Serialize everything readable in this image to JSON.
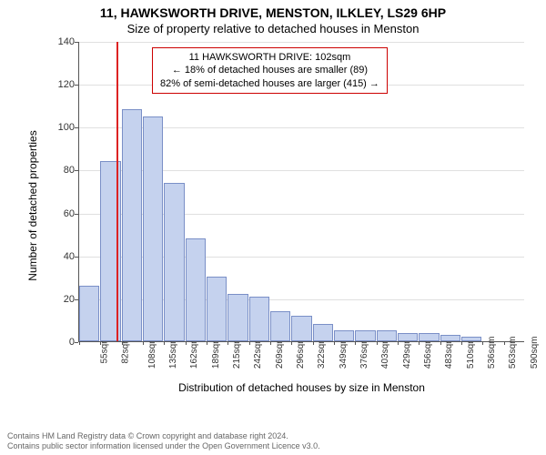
{
  "title": "11, HAWKSWORTH DRIVE, MENSTON, ILKLEY, LS29 6HP",
  "subtitle": "Size of property relative to detached houses in Menston",
  "chart": {
    "type": "histogram",
    "ylabel": "Number of detached properties",
    "xlabel": "Distribution of detached houses by size in Menston",
    "ylim": [
      0,
      140
    ],
    "ytick_step": 20,
    "yticks": [
      0,
      20,
      40,
      60,
      80,
      100,
      120,
      140
    ],
    "bar_fill": "#c5d2ee",
    "bar_stroke": "#7a8fc7",
    "grid_color": "#e0e0e0",
    "background_color": "#ffffff",
    "marker_line_color": "#d22",
    "marker_value_sqm": 102,
    "bin_width_sqm": 27,
    "bin_start_sqm": 55,
    "categories": [
      "55sqm",
      "82sqm",
      "108sqm",
      "135sqm",
      "162sqm",
      "189sqm",
      "215sqm",
      "242sqm",
      "269sqm",
      "296sqm",
      "322sqm",
      "349sqm",
      "376sqm",
      "403sqm",
      "429sqm",
      "456sqm",
      "483sqm",
      "510sqm",
      "536sqm",
      "563sqm",
      "590sqm"
    ],
    "values": [
      26,
      84,
      108,
      105,
      74,
      48,
      30,
      22,
      21,
      14,
      12,
      8,
      5,
      5,
      5,
      4,
      4,
      3,
      2,
      0,
      0
    ],
    "annotation": {
      "line1": "11 HAWKSWORTH DRIVE: 102sqm",
      "line2": "← 18% of detached houses are smaller (89)",
      "line3": "82% of semi-detached houses are larger (415) →",
      "border_color": "#c00"
    },
    "title_fontsize": 14,
    "label_fontsize": 12,
    "tick_fontsize": 10
  },
  "footer": {
    "line1": "Contains HM Land Registry data © Crown copyright and database right 2024.",
    "line2": "Contains public sector information licensed under the Open Government Licence v3.0."
  }
}
